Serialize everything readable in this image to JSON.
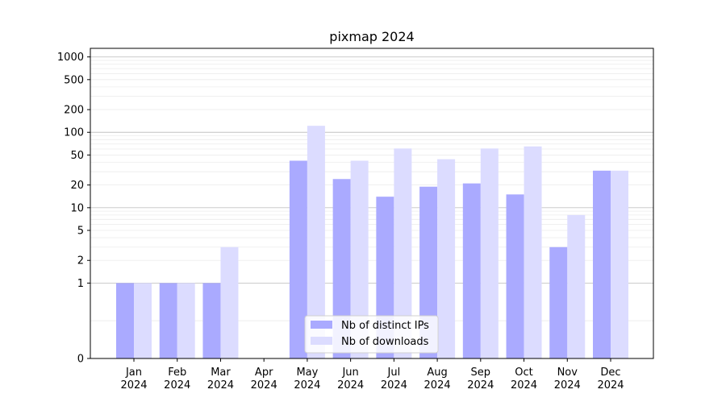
{
  "chart_data": {
    "type": "bar",
    "title": "pixmap 2024",
    "xlabel": "",
    "ylabel": "",
    "categories": [
      "Jan\n2024",
      "Feb\n2024",
      "Mar\n2024",
      "Apr\n2024",
      "May\n2024",
      "Jun\n2024",
      "Jul\n2024",
      "Aug\n2024",
      "Sep\n2024",
      "Oct\n2024",
      "Nov\n2024",
      "Dec\n2024"
    ],
    "series": [
      {
        "name": "Nb of distinct IPs",
        "color": "#aaaaff",
        "values": [
          1,
          1,
          1,
          0,
          42,
          24,
          14,
          19,
          21,
          15,
          3,
          31
        ]
      },
      {
        "name": "Nb of downloads",
        "color": "#dcdcff",
        "values": [
          1,
          1,
          3,
          0,
          122,
          42,
          61,
          44,
          61,
          65,
          8,
          31
        ]
      }
    ],
    "yscale": "symlog",
    "ylim": [
      0,
      1300
    ],
    "yticks": [
      0,
      1,
      2,
      5,
      10,
      20,
      50,
      100,
      200,
      500,
      1000
    ],
    "grid": true,
    "legend_position": "lower-center"
  }
}
